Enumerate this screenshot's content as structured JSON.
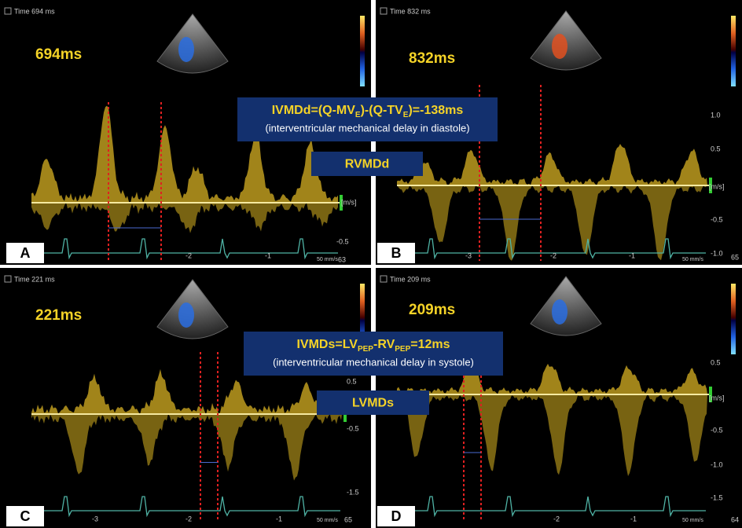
{
  "panels": [
    {
      "label": "A",
      "interval": "694ms",
      "time": "Time 694 ms",
      "scale": [
        "-0.5",
        "[m/s]",
        "63"
      ],
      "ecg": [
        "-2",
        "-1"
      ],
      "sweep": "50 mm/s"
    },
    {
      "label": "B",
      "interval": "832ms",
      "time": "Time 832 ms",
      "scale": [
        "1.0",
        "0.5",
        "[m/s]",
        "-0.5",
        "-1.0",
        "65"
      ],
      "ecg": [
        "-3",
        "-2",
        "-1"
      ],
      "sweep": "50 mm/s"
    },
    {
      "label": "C",
      "interval": "221ms",
      "time": "Time 221 ms",
      "scale": [
        "0.5",
        "-0.5",
        "-1.5",
        "65"
      ],
      "ecg": [
        "-3",
        "-2",
        "-1"
      ],
      "sweep": "50 mm/s"
    },
    {
      "label": "D",
      "interval": "209ms",
      "time": "Time 209 ms",
      "scale": [
        "0.5",
        "[m/s]",
        "-0.5",
        "-1.0",
        "-1.5",
        "64"
      ],
      "ecg": [
        "-2",
        "-1"
      ],
      "sweep": "50 mm/s"
    }
  ],
  "overlays": [
    {
      "formula": [
        "IVMDd=(Q-MV",
        "E",
        ")-(Q-TV",
        "E",
        ")=-138ms"
      ],
      "note": "(interventricular mechanical delay in diastole)",
      "tag": "RVMDd"
    },
    {
      "formula": [
        "IVMDs=LV",
        "PEP",
        "-RV",
        "PEP",
        "=12ms"
      ],
      "note": "(interventricular mechanical delay in systole)",
      "tag": "LVMDs"
    }
  ]
}
